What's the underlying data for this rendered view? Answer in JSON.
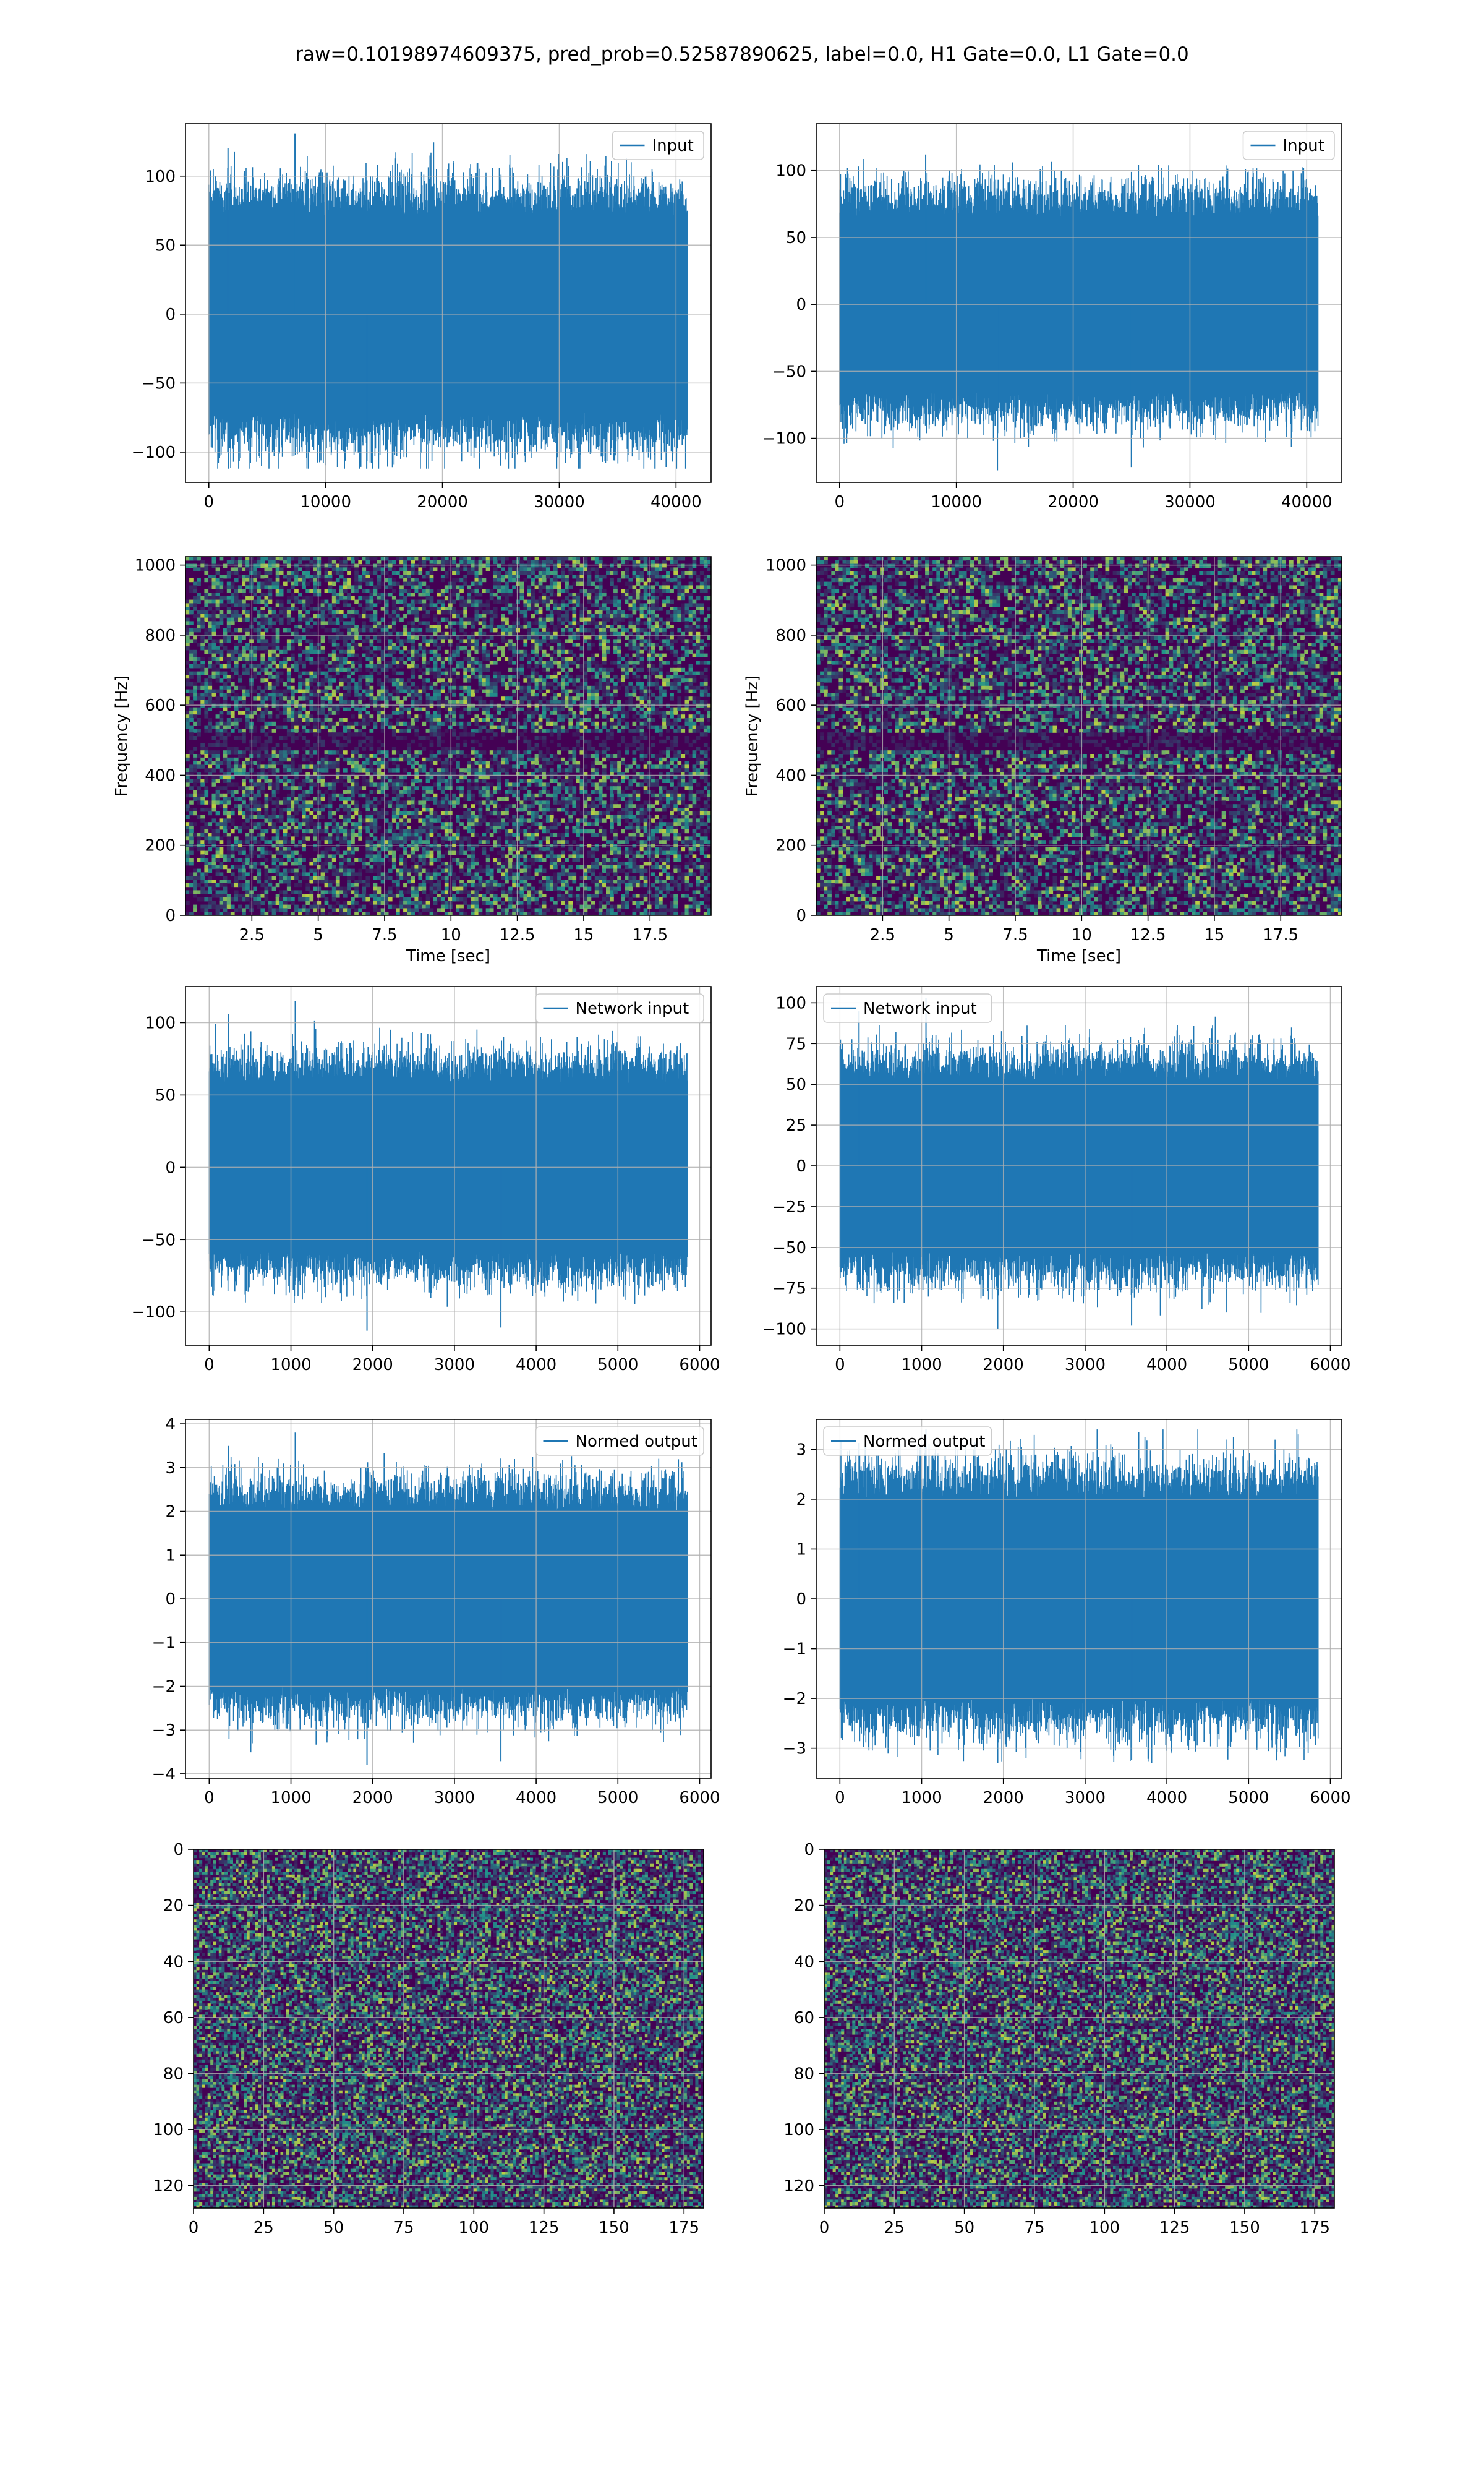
{
  "figure": {
    "title": "raw=0.10198974609375, pred_prob=0.52587890625, label=0.0, H1 Gate=0.0, L1 Gate=0.0"
  },
  "colors": {
    "line": "#1f77b4",
    "heat_low": "#440154",
    "heat_mid": "#21918c",
    "heat_high": "#fde725",
    "grid": "#b0b0b0"
  },
  "chart_data": [
    {
      "type": "line",
      "legend": "Input",
      "legend_loc": "upper right",
      "grid": true,
      "x": {
        "lim": [
          -2000,
          43000
        ],
        "ticks": [
          0,
          10000,
          20000,
          30000,
          40000
        ],
        "label": ""
      },
      "y": {
        "lim": [
          -122,
          138
        ],
        "ticks": [
          -100,
          -50,
          0,
          50,
          100
        ],
        "label": ""
      },
      "series": {
        "x_range": [
          0,
          40960
        ],
        "envelope": [
          -112,
          131
        ],
        "bulk": 68
      }
    },
    {
      "type": "line",
      "legend": "Input",
      "legend_loc": "upper right",
      "grid": true,
      "x": {
        "lim": [
          -2000,
          43000
        ],
        "ticks": [
          0,
          10000,
          20000,
          30000,
          40000
        ],
        "label": ""
      },
      "y": {
        "lim": [
          -133,
          135
        ],
        "ticks": [
          -100,
          -50,
          0,
          50,
          100
        ],
        "label": ""
      },
      "series": {
        "x_range": [
          0,
          40960
        ],
        "envelope": [
          -124,
          112
        ],
        "bulk": 62
      }
    },
    {
      "type": "heatmap",
      "grid": true,
      "yline": 500,
      "x": {
        "lim": [
          0,
          19.8
        ],
        "ticks": [
          2.5,
          5.0,
          7.5,
          10.0,
          12.5,
          15.0,
          17.5
        ],
        "label": "Time [sec]"
      },
      "y": {
        "lim": [
          0,
          1024
        ],
        "ticks": [
          0,
          200,
          400,
          600,
          800,
          1000
        ],
        "label": "Frequency [Hz]"
      }
    },
    {
      "type": "heatmap",
      "grid": true,
      "yline": 500,
      "x": {
        "lim": [
          0,
          19.8
        ],
        "ticks": [
          2.5,
          5.0,
          7.5,
          10.0,
          12.5,
          15.0,
          17.5
        ],
        "label": "Time [sec]"
      },
      "y": {
        "lim": [
          0,
          1024
        ],
        "ticks": [
          0,
          200,
          400,
          600,
          800,
          1000
        ],
        "label": "Frequency [Hz]"
      }
    },
    {
      "type": "line",
      "legend": "Network input",
      "legend_loc": "upper right",
      "grid": true,
      "x": {
        "lim": [
          -290,
          6140
        ],
        "ticks": [
          0,
          1000,
          2000,
          3000,
          4000,
          5000,
          6000
        ],
        "label": ""
      },
      "y": {
        "lim": [
          -123,
          125
        ],
        "ticks": [
          -100,
          -50,
          0,
          50,
          100
        ],
        "label": ""
      },
      "series": {
        "x_range": [
          0,
          5850
        ],
        "envelope": [
          -113,
          115
        ],
        "bulk": 55
      }
    },
    {
      "type": "line",
      "legend": "Network input",
      "legend_loc": "upper left",
      "grid": true,
      "x": {
        "lim": [
          -290,
          6140
        ],
        "ticks": [
          0,
          1000,
          2000,
          3000,
          4000,
          5000,
          6000
        ],
        "label": ""
      },
      "y": {
        "lim": [
          -110,
          110
        ],
        "ticks": [
          -100,
          -75,
          -50,
          -25,
          0,
          25,
          50,
          75,
          100
        ],
        "label": ""
      },
      "series": {
        "x_range": [
          0,
          5850
        ],
        "envelope": [
          -100,
          103
        ],
        "bulk": 50
      }
    },
    {
      "type": "line",
      "legend": "Normed output",
      "legend_loc": "upper right",
      "grid": true,
      "x": {
        "lim": [
          -290,
          6140
        ],
        "ticks": [
          0,
          1000,
          2000,
          3000,
          4000,
          5000,
          6000
        ],
        "label": ""
      },
      "y": {
        "lim": [
          -4.1,
          4.1
        ],
        "ticks": [
          -4,
          -3,
          -2,
          -1,
          0,
          1,
          2,
          3,
          4
        ],
        "label": ""
      },
      "series": {
        "x_range": [
          0,
          5850
        ],
        "envelope": [
          -3.8,
          3.8
        ],
        "bulk": 1.9
      }
    },
    {
      "type": "line",
      "legend": "Normed output",
      "legend_loc": "upper left",
      "grid": true,
      "x": {
        "lim": [
          -290,
          6140
        ],
        "ticks": [
          0,
          1000,
          2000,
          3000,
          4000,
          5000,
          6000
        ],
        "label": ""
      },
      "y": {
        "lim": [
          -3.6,
          3.6
        ],
        "ticks": [
          -3,
          -2,
          -1,
          0,
          1,
          2,
          3
        ],
        "label": ""
      },
      "series": {
        "x_range": [
          0,
          5850
        ],
        "envelope": [
          -3.3,
          3.4
        ],
        "bulk": 1.9
      }
    },
    {
      "type": "heatmap",
      "grid": true,
      "invert_y": true,
      "x": {
        "lim": [
          0,
          182
        ],
        "ticks": [
          0,
          25,
          50,
          75,
          100,
          125,
          150,
          175
        ],
        "label": ""
      },
      "y": {
        "lim": [
          128,
          0
        ],
        "ticks": [
          0,
          20,
          40,
          60,
          80,
          100,
          120
        ],
        "label": ""
      }
    },
    {
      "type": "heatmap",
      "grid": true,
      "invert_y": true,
      "x": {
        "lim": [
          0,
          182
        ],
        "ticks": [
          0,
          25,
          50,
          75,
          100,
          125,
          150,
          175
        ],
        "label": ""
      },
      "y": {
        "lim": [
          128,
          0
        ],
        "ticks": [
          0,
          20,
          40,
          60,
          80,
          100,
          120
        ],
        "label": ""
      }
    }
  ]
}
